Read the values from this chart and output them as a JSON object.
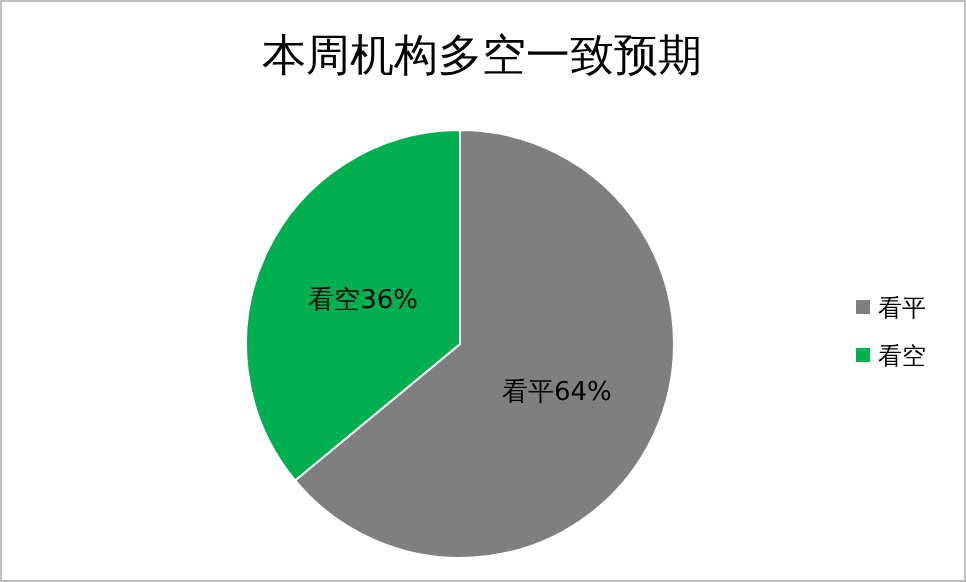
{
  "chart_data": {
    "type": "pie",
    "title": "本周机构多空一致预期",
    "categories": [
      "看平",
      "看空"
    ],
    "values": [
      64,
      36
    ],
    "colors": [
      "#7f7f7f",
      "#00b050"
    ],
    "value_labels": [
      "看平64%",
      "看空36%"
    ],
    "legend": "right"
  }
}
